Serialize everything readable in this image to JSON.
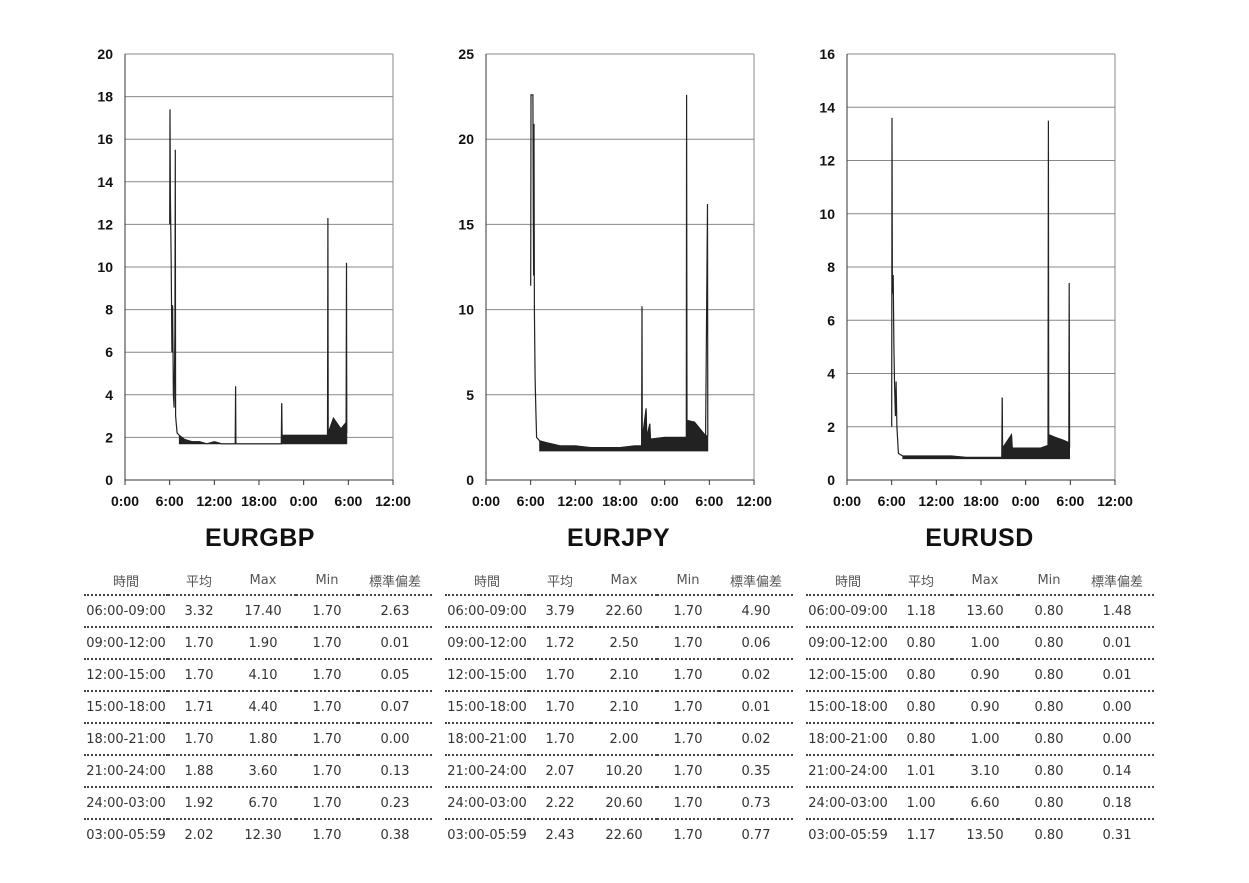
{
  "table_headers": [
    "時間",
    "平均",
    "Max",
    "Min",
    "標準偏差"
  ],
  "charts": [
    {
      "name": "EURGBP",
      "type": "line",
      "ylim": [
        0,
        20
      ],
      "yticks": [
        "0",
        "2",
        "4",
        "6",
        "8",
        "10",
        "12",
        "14",
        "16",
        "18",
        "20"
      ],
      "xticks": [
        "0:00",
        "6:00",
        "12:00",
        "18:00",
        "0:00",
        "6:00",
        "12:00"
      ],
      "base": 1.7,
      "rows": [
        [
          "06:00-09:00",
          "3.32",
          "17.40",
          "1.70",
          "2.63"
        ],
        [
          "09:00-12:00",
          "1.70",
          "1.90",
          "1.70",
          "0.01"
        ],
        [
          "12:00-15:00",
          "1.70",
          "4.10",
          "1.70",
          "0.05"
        ],
        [
          "15:00-18:00",
          "1.71",
          "4.40",
          "1.70",
          "0.07"
        ],
        [
          "18:00-21:00",
          "1.70",
          "1.80",
          "1.70",
          "0.00"
        ],
        [
          "21:00-24:00",
          "1.88",
          "3.60",
          "1.70",
          "0.13"
        ],
        [
          "24:00-03:00",
          "1.92",
          "6.70",
          "1.70",
          "0.23"
        ],
        [
          "03:00-05:59",
          "2.02",
          "12.30",
          "1.70",
          "0.38"
        ]
      ],
      "points": [
        [
          0,
          null
        ],
        [
          6.0,
          12.0
        ],
        [
          6.05,
          17.4
        ],
        [
          6.1,
          13.3
        ],
        [
          6.2,
          10.2
        ],
        [
          6.3,
          6.0
        ],
        [
          6.4,
          8.2
        ],
        [
          6.5,
          4.0
        ],
        [
          6.6,
          3.4
        ],
        [
          6.7,
          6.9
        ],
        [
          6.75,
          15.5
        ],
        [
          6.8,
          3.0
        ],
        [
          7.0,
          2.2
        ],
        [
          7.3,
          2.1
        ],
        [
          8,
          1.9
        ],
        [
          9,
          1.8
        ],
        [
          10,
          1.8
        ],
        [
          11,
          1.7
        ],
        [
          12,
          1.8
        ],
        [
          13,
          1.7
        ],
        [
          14,
          1.7
        ],
        [
          14.8,
          1.7
        ],
        [
          14.85,
          4.4
        ],
        [
          14.9,
          1.7
        ],
        [
          16,
          1.7
        ],
        [
          18,
          1.7
        ],
        [
          20,
          1.7
        ],
        [
          21.0,
          1.7
        ],
        [
          21.05,
          3.6
        ],
        [
          21.1,
          2.1
        ],
        [
          22,
          2.1
        ],
        [
          24,
          2.1
        ],
        [
          26,
          2.1
        ],
        [
          27.2,
          2.1
        ],
        [
          27.25,
          12.3
        ],
        [
          27.3,
          2.2
        ],
        [
          28,
          2.9
        ],
        [
          29,
          2.4
        ],
        [
          29.7,
          2.7
        ],
        [
          29.75,
          10.2
        ],
        [
          29.8,
          2.2
        ]
      ]
    },
    {
      "name": "EURJPY",
      "type": "line",
      "ylim": [
        0,
        25
      ],
      "yticks": [
        "0",
        "5",
        "10",
        "15",
        "20",
        "25"
      ],
      "xticks": [
        "0:00",
        "6:00",
        "12:00",
        "18:00",
        "0:00",
        "6:00",
        "12:00"
      ],
      "base": 1.7,
      "rows": [
        [
          "06:00-09:00",
          "3.79",
          "22.60",
          "1.70",
          "4.90"
        ],
        [
          "09:00-12:00",
          "1.72",
          "2.50",
          "1.70",
          "0.06"
        ],
        [
          "12:00-15:00",
          "1.70",
          "2.10",
          "1.70",
          "0.02"
        ],
        [
          "15:00-18:00",
          "1.70",
          "2.10",
          "1.70",
          "0.01"
        ],
        [
          "18:00-21:00",
          "1.70",
          "2.00",
          "1.70",
          "0.02"
        ],
        [
          "21:00-24:00",
          "2.07",
          "10.20",
          "1.70",
          "0.35"
        ],
        [
          "24:00-03:00",
          "2.22",
          "20.60",
          "1.70",
          "0.73"
        ],
        [
          "03:00-05:59",
          "2.43",
          "22.60",
          "1.70",
          "0.77"
        ]
      ],
      "points": [
        [
          6.0,
          11.4
        ],
        [
          6.05,
          22.6
        ],
        [
          6.3,
          22.6
        ],
        [
          6.35,
          15.7
        ],
        [
          6.4,
          12.0
        ],
        [
          6.45,
          20.9
        ],
        [
          6.5,
          10.0
        ],
        [
          6.6,
          6.0
        ],
        [
          6.7,
          4.0
        ],
        [
          6.8,
          2.5
        ],
        [
          7.2,
          2.3
        ],
        [
          8,
          2.2
        ],
        [
          9,
          2.1
        ],
        [
          10,
          2.0
        ],
        [
          12,
          2.0
        ],
        [
          14,
          1.9
        ],
        [
          16,
          1.9
        ],
        [
          18,
          1.9
        ],
        [
          20,
          2.0
        ],
        [
          20.9,
          2.0
        ],
        [
          20.95,
          10.2
        ],
        [
          21.0,
          2.4
        ],
        [
          21.5,
          4.2
        ],
        [
          21.6,
          2.5
        ],
        [
          22,
          3.3
        ],
        [
          22.1,
          2.4
        ],
        [
          24,
          2.5
        ],
        [
          26,
          2.5
        ],
        [
          26.9,
          2.5
        ],
        [
          26.95,
          22.6
        ],
        [
          27.0,
          3.5
        ],
        [
          28,
          3.4
        ],
        [
          29.5,
          2.6
        ],
        [
          29.75,
          16.2
        ],
        [
          29.8,
          2.6
        ]
      ]
    },
    {
      "name": "EURUSD",
      "type": "line",
      "ylim": [
        0,
        16
      ],
      "yticks": [
        "0",
        "2",
        "4",
        "6",
        "8",
        "10",
        "12",
        "14",
        "16"
      ],
      "xticks": [
        "0:00",
        "6:00",
        "12:00",
        "18:00",
        "0:00",
        "6:00",
        "12:00"
      ],
      "base": 0.8,
      "rows": [
        [
          "06:00-09:00",
          "1.18",
          "13.60",
          "0.80",
          "1.48"
        ],
        [
          "09:00-12:00",
          "0.80",
          "1.00",
          "0.80",
          "0.01"
        ],
        [
          "12:00-15:00",
          "0.80",
          "0.90",
          "0.80",
          "0.01"
        ],
        [
          "15:00-18:00",
          "0.80",
          "0.90",
          "0.80",
          "0.00"
        ],
        [
          "18:00-21:00",
          "0.80",
          "1.00",
          "0.80",
          "0.00"
        ],
        [
          "21:00-24:00",
          "1.01",
          "3.10",
          "0.80",
          "0.14"
        ],
        [
          "24:00-03:00",
          "1.00",
          "6.60",
          "0.80",
          "0.18"
        ],
        [
          "03:00-05:59",
          "1.17",
          "13.50",
          "0.80",
          "0.31"
        ]
      ],
      "points": [
        [
          6.0,
          2.0
        ],
        [
          6.05,
          13.6
        ],
        [
          6.1,
          7.0
        ],
        [
          6.2,
          7.7
        ],
        [
          6.3,
          5.0
        ],
        [
          6.4,
          3.5
        ],
        [
          6.5,
          2.4
        ],
        [
          6.6,
          3.7
        ],
        [
          6.7,
          2.0
        ],
        [
          6.9,
          1.0
        ],
        [
          7.5,
          0.9
        ],
        [
          8,
          0.9
        ],
        [
          10,
          0.9
        ],
        [
          12,
          0.9
        ],
        [
          14,
          0.9
        ],
        [
          16,
          0.85
        ],
        [
          18,
          0.85
        ],
        [
          20,
          0.85
        ],
        [
          20.8,
          0.85
        ],
        [
          20.85,
          3.1
        ],
        [
          20.9,
          1.2
        ],
        [
          22.1,
          1.7
        ],
        [
          22.2,
          1.2
        ],
        [
          24,
          1.2
        ],
        [
          26,
          1.2
        ],
        [
          27.0,
          1.3
        ],
        [
          27.05,
          13.5
        ],
        [
          27.1,
          1.7
        ],
        [
          28,
          1.6
        ],
        [
          29,
          1.5
        ],
        [
          29.8,
          1.4
        ],
        [
          29.85,
          7.4
        ],
        [
          29.9,
          1.2
        ]
      ]
    }
  ]
}
